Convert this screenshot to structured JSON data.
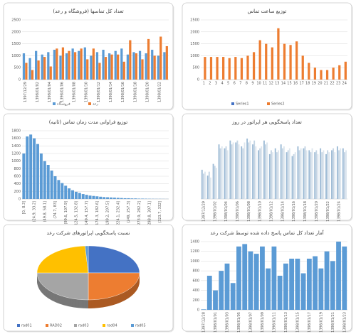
{
  "chart_data": [
    {
      "type": "bar",
      "title": "تعداد کل تماسها (فروشگاه و رعد)",
      "categories": [
        "1397/12/29",
        null,
        "1398/01/02",
        null,
        "1398/01/04",
        null,
        "1398/01/06",
        null,
        "1398/01/08",
        null,
        "1398/01/10",
        null,
        "1398/01/12",
        null,
        "1398/01/14",
        null,
        "1398/01/16",
        null,
        "1398/01/18",
        null,
        "1398/01/20",
        null,
        "1398/01/22",
        null
      ],
      "series": [
        {
          "name": "فروشگاه",
          "color": "#5b9bd5",
          "values": [
            1100,
            900,
            1200,
            1050,
            1150,
            1250,
            1000,
            1100,
            1300,
            1200,
            1350,
            1000,
            1150,
            1250,
            1100,
            1200,
            1300,
            1050,
            1150,
            1200,
            1100,
            1250,
            1000,
            1150
          ]
        },
        {
          "name": "رعد",
          "color": "#ed7d31",
          "values": [
            700,
            400,
            800,
            950,
            550,
            1300,
            1350,
            1200,
            1150,
            1300,
            850,
            1300,
            700,
            950,
            1050,
            1050,
            750,
            1650,
            1100,
            850,
            1700,
            1000,
            1800,
            1400
          ]
        }
      ],
      "ylim": [
        0,
        2500
      ],
      "yticks": [
        0,
        500,
        1000,
        1500,
        2000,
        2500
      ],
      "grid": true
    },
    {
      "type": "bar",
      "title": "توزیع ساعت تماس",
      "categories": [
        1,
        2,
        3,
        4,
        5,
        6,
        7,
        8,
        9,
        10,
        11,
        12,
        13,
        14,
        15,
        16,
        17,
        18,
        19,
        20,
        21,
        22,
        23,
        24
      ],
      "series": [
        {
          "name": "Series1",
          "color": "#4472c4",
          "values": [
            0,
            0,
            0,
            0,
            0,
            0,
            0,
            0,
            0,
            0,
            0,
            0,
            0,
            0,
            0,
            0,
            0,
            0,
            0,
            0,
            0,
            0,
            0,
            0
          ]
        },
        {
          "name": "Series2",
          "color": "#ed7d31",
          "values": [
            950,
            950,
            950,
            950,
            900,
            950,
            900,
            1000,
            1150,
            1650,
            1500,
            1350,
            2150,
            1500,
            1450,
            1600,
            1000,
            700,
            500,
            400,
            400,
            500,
            600,
            750
          ]
        }
      ],
      "ylim": [
        0,
        2500
      ],
      "yticks": [
        0,
        500,
        1000,
        1500,
        2000,
        2500
      ],
      "grid": true
    },
    {
      "type": "bar",
      "title": "توزیع فراوانی مدت زمان تماس (ثانیه)",
      "categories": [
        "[0, 8.3]",
        null,
        null,
        "(24.9, 33.2]",
        null,
        null,
        "(49.8, 58.1]",
        null,
        null,
        "(74.7, 83]",
        null,
        null,
        "(99.6, 107.9]",
        null,
        null,
        "(124.5, 132.8]",
        null,
        null,
        "(149.4, 157.7]",
        null,
        null,
        "(174.3, 182.6]",
        null,
        null,
        "(199.2, 207.5]",
        null,
        null,
        "(224.1, 232.4]",
        null,
        null,
        "(249, 257.3]",
        null,
        null,
        "(273.9, 282.2]",
        null,
        null,
        "(298.8, 307.1]",
        null,
        null,
        "(323.7, 332]",
        null,
        null
      ],
      "values": [
        1200,
        1650,
        1700,
        1600,
        1450,
        1200,
        1000,
        900,
        750,
        600,
        500,
        420,
        350,
        280,
        230,
        190,
        160,
        130,
        110,
        90,
        80,
        70,
        60,
        50,
        45,
        40,
        35,
        30,
        25,
        20,
        20,
        15,
        15,
        10,
        10,
        8,
        6,
        5,
        4,
        4,
        3,
        2
      ],
      "color": "#5b9bd5",
      "ylim": [
        0,
        1800
      ],
      "yticks": [
        0,
        200,
        400,
        600,
        800,
        1000,
        1200,
        1400,
        1600,
        1800
      ],
      "grid": true
    },
    {
      "type": "bar",
      "title": "تعداد پاسخگویی هر اپراتور در روز",
      "categories": [
        "1397/12/29",
        null,
        "1398/01/02",
        null,
        "1398/01/04",
        null,
        "1398/01/06",
        null,
        "1398/01/08",
        null,
        "1398/01/10",
        null,
        "1398/01/12",
        null,
        "1398/01/14",
        null,
        "1398/01/16",
        null,
        "1398/01/18",
        null,
        "1398/01/20",
        null,
        "1398/01/22",
        null,
        "1398/01/24",
        null
      ],
      "series": [
        {
          "color": "#9fbcd6",
          "values": [
            150,
            120,
            180,
            280,
            260,
            300,
            290,
            270,
            310,
            280,
            250,
            300,
            230,
            260,
            280,
            240,
            220,
            270,
            260,
            250,
            240,
            260,
            230,
            250,
            270,
            260
          ]
        },
        {
          "color": "#c5d5e4",
          "values": [
            130,
            140,
            170,
            260,
            270,
            280,
            300,
            260,
            290,
            300,
            260,
            280,
            250,
            240,
            260,
            250,
            230,
            250,
            270,
            240,
            250,
            240,
            250,
            260,
            250,
            240
          ]
        },
        {
          "color": "#dde6ee",
          "values": [
            140,
            110,
            160,
            270,
            250,
            290,
            280,
            290,
            300,
            270,
            270,
            290,
            240,
            250,
            270,
            260,
            240,
            260,
            250,
            260,
            230,
            250,
            240,
            240,
            260,
            250
          ]
        }
      ],
      "ylim": [
        0,
        350
      ],
      "grid": false
    },
    {
      "type": "pie",
      "title": "نسبت پاسخگویی اپراتورهای شرکت رعد",
      "categories": [
        "rad01",
        "RAD02",
        "rad03",
        "rad04",
        "rad05"
      ],
      "values": [
        25,
        25,
        25,
        24,
        1
      ],
      "colors": [
        "#4472c4",
        "#ed7d31",
        "#a5a5a5",
        "#ffc000",
        "#5b9bd5"
      ]
    },
    {
      "type": "bar",
      "title": "آمار تعداد کل تماس پاسخ داده شده توسط شرکت رعد",
      "categories": [
        "1397/12/28",
        null,
        "1398/01/01",
        null,
        "1398/01/03",
        null,
        "1398/01/05",
        null,
        "1398/01/07",
        null,
        "1398/01/09",
        null,
        "1398/01/11",
        null,
        "1398/01/13",
        null,
        "1398/01/15",
        null,
        "1398/01/17",
        null,
        "1398/01/19",
        null,
        "1398/01/21",
        null,
        "1398/01/23"
      ],
      "values": [
        10,
        700,
        400,
        800,
        950,
        550,
        1300,
        1350,
        1200,
        1150,
        1300,
        850,
        1300,
        700,
        950,
        1050,
        1050,
        750,
        1050,
        1100,
        850,
        1200,
        1000,
        1400,
        1300
      ],
      "color": "#5b9bd5",
      "ylim": [
        0,
        1400
      ],
      "yticks": [
        0,
        200,
        400,
        600,
        800,
        1000,
        1200,
        1400
      ],
      "grid": true
    }
  ]
}
